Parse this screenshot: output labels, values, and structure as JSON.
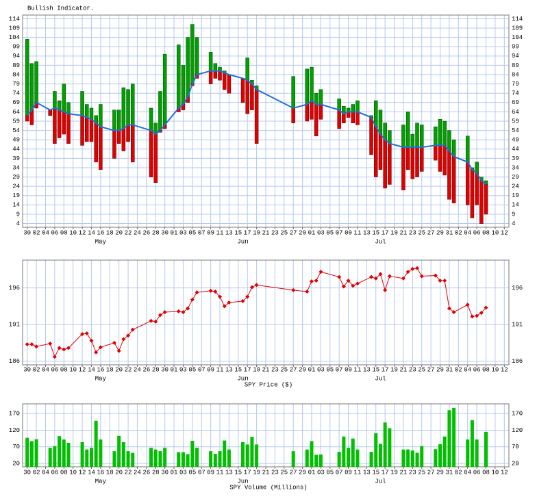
{
  "chart_data": [
    {
      "type": "range_bar",
      "title": "Bullish Indicator.",
      "x": [
        0,
        1,
        2,
        5,
        6,
        7,
        8,
        9,
        12,
        13,
        14,
        15,
        16,
        19,
        20,
        21,
        22,
        23,
        27,
        28,
        29,
        30,
        33,
        34,
        35,
        36,
        37,
        40,
        41,
        42,
        43,
        44,
        47,
        48,
        49,
        50,
        58,
        61,
        62,
        63,
        64,
        68,
        69,
        70,
        71,
        72,
        75,
        76,
        77,
        78,
        79,
        82,
        83,
        84,
        85,
        86,
        89,
        90,
        91,
        92,
        93,
        96,
        97,
        98,
        99,
        100
      ],
      "high": [
        103,
        90,
        91,
        65,
        75,
        70,
        79,
        69,
        75,
        68,
        66,
        62,
        68,
        65,
        65,
        77,
        76,
        79,
        66,
        58,
        75,
        95,
        100,
        89,
        104,
        111,
        104,
        96,
        90,
        88,
        86,
        84,
        82,
        93,
        81,
        78,
        83,
        87,
        88,
        74,
        76,
        71,
        67,
        66,
        68,
        70,
        62,
        70,
        65,
        58,
        54,
        57,
        64,
        52,
        58,
        57,
        56,
        60,
        59,
        54,
        49,
        51,
        34,
        37,
        29,
        27
      ],
      "low": [
        59,
        57,
        66,
        62,
        47,
        50,
        52,
        47,
        46,
        48,
        48,
        37,
        33,
        39,
        47,
        43,
        48,
        37,
        29,
        26,
        53,
        55,
        64,
        65,
        69,
        78,
        82,
        79,
        82,
        81,
        76,
        74,
        69,
        63,
        65,
        47,
        58,
        59,
        60,
        51,
        60,
        55,
        58,
        61,
        58,
        57,
        41,
        29,
        33,
        23,
        25,
        22,
        33,
        28,
        29,
        32,
        38,
        32,
        30,
        17,
        15,
        14,
        7,
        14,
        4,
        9
      ],
      "average": [
        62,
        65,
        69,
        65,
        66,
        65,
        64,
        63,
        62,
        61,
        60,
        58,
        56,
        54,
        54,
        55,
        57,
        57,
        54,
        52,
        54,
        57,
        66,
        68,
        72,
        79,
        84,
        86,
        86,
        86,
        85,
        84,
        82,
        81,
        79,
        76,
        66,
        68,
        70,
        68,
        68,
        65,
        63,
        64,
        64,
        64,
        61,
        56,
        52,
        49,
        47,
        45,
        45,
        45,
        45,
        45,
        46,
        46,
        46,
        43,
        40,
        37,
        33,
        31,
        27,
        25
      ],
      "up_color": "#00a000",
      "down_color": "#e00000",
      "line_color": "#1f6fd6",
      "xlim": [
        -1,
        105
      ],
      "xticks": [
        {
          "value": 0,
          "label": "30"
        },
        {
          "value": 2,
          "label": "02"
        },
        {
          "value": 4,
          "label": "04"
        },
        {
          "value": 6,
          "label": "06"
        },
        {
          "value": 8,
          "label": "08"
        },
        10,
        12,
        14,
        16,
        18,
        20,
        22,
        24,
        26,
        28,
        30,
        {
          "value": 32,
          "label": "01"
        },
        {
          "value": 34,
          "label": "03"
        },
        {
          "value": 36,
          "label": "05"
        },
        {
          "value": 38,
          "label": "07"
        },
        {
          "value": 40,
          "label": "09"
        },
        {
          "value": 42,
          "label": "11"
        },
        {
          "value": 44,
          "label": "13"
        },
        {
          "value": 46,
          "label": "15"
        },
        {
          "value": 48,
          "label": "17"
        },
        {
          "value": 50,
          "label": "19"
        },
        {
          "value": 52,
          "label": "21"
        },
        {
          "value": 54,
          "label": "23"
        },
        {
          "value": 56,
          "label": "25"
        },
        {
          "value": 58,
          "label": "27"
        },
        {
          "value": 60,
          "label": "29"
        },
        {
          "value": 62,
          "label": "01"
        },
        {
          "value": 64,
          "label": "03"
        },
        {
          "value": 66,
          "label": "05"
        },
        {
          "value": 68,
          "label": "07"
        },
        {
          "value": 70,
          "label": "09"
        },
        {
          "value": 72,
          "label": "11"
        },
        {
          "value": 74,
          "label": "13"
        },
        {
          "value": 76,
          "label": "15"
        },
        {
          "value": 78,
          "label": "17"
        },
        {
          "value": 80,
          "label": "19"
        },
        {
          "value": 82,
          "label": "21"
        },
        {
          "value": 84,
          "label": "23"
        },
        {
          "value": 86,
          "label": "25"
        },
        {
          "value": 88,
          "label": "27"
        },
        {
          "value": 90,
          "label": "29"
        },
        {
          "value": 92,
          "label": "31"
        },
        {
          "value": 94,
          "label": "02"
        },
        {
          "value": 96,
          "label": "04"
        },
        {
          "value": 98,
          "label": "06"
        },
        {
          "value": 100,
          "label": "08"
        },
        {
          "value": 102,
          "label": "10"
        },
        {
          "value": 104,
          "label": "12"
        }
      ],
      "month_labels": [
        {
          "value": 16,
          "label": "May"
        },
        {
          "value": 47,
          "label": "Jun"
        },
        {
          "value": 77,
          "label": "Jul"
        }
      ],
      "ylim": [
        2,
        116
      ],
      "yticks": [
        4,
        9,
        14,
        19,
        24,
        29,
        34,
        39,
        44,
        49,
        54,
        59,
        64,
        69,
        74,
        79,
        84,
        89,
        94,
        99,
        104,
        109,
        114
      ],
      "grid": true
    },
    {
      "type": "line",
      "title": "SPY Price ($)",
      "x": [
        0,
        1,
        2,
        5,
        6,
        7,
        8,
        9,
        12,
        13,
        14,
        15,
        16,
        19,
        20,
        21,
        22,
        23,
        27,
        28,
        29,
        30,
        33,
        34,
        35,
        36,
        37,
        40,
        41,
        42,
        43,
        44,
        47,
        48,
        49,
        50,
        58,
        61,
        62,
        63,
        64,
        68,
        69,
        70,
        71,
        72,
        75,
        76,
        77,
        78,
        79,
        82,
        83,
        84,
        85,
        86,
        89,
        90,
        91,
        92,
        93,
        96,
        97,
        98,
        99,
        100
      ],
      "values": [
        188.3,
        188.3,
        188.0,
        188.4,
        186.6,
        187.8,
        187.6,
        187.8,
        189.7,
        189.8,
        188.8,
        187.2,
        187.9,
        188.5,
        187.4,
        189.0,
        189.5,
        190.3,
        191.5,
        191.4,
        192.3,
        192.7,
        192.8,
        192.7,
        193.2,
        194.4,
        195.4,
        195.6,
        195.5,
        194.8,
        193.5,
        194.0,
        194.2,
        194.8,
        196.1,
        196.4,
        195.7,
        195.5,
        196.9,
        197.0,
        198.2,
        197.5,
        196.2,
        197.0,
        196.3,
        196.6,
        197.5,
        197.3,
        197.9,
        195.7,
        197.6,
        197.3,
        198.2,
        198.6,
        198.7,
        197.6,
        197.7,
        197.0,
        197.0,
        193.2,
        192.7,
        193.7,
        192.1,
        192.2,
        192.6,
        193.3
      ],
      "color": "#e00000",
      "xlim": [
        -1,
        105
      ],
      "xticks": [
        {
          "value": 0,
          "label": "30"
        },
        {
          "value": 2,
          "label": "02"
        },
        {
          "value": 4,
          "label": "04"
        },
        {
          "value": 6,
          "label": "06"
        },
        {
          "value": 8,
          "label": "08"
        },
        10,
        12,
        14,
        16,
        18,
        20,
        22,
        24,
        26,
        28,
        30,
        {
          "value": 32,
          "label": "01"
        },
        {
          "value": 34,
          "label": "03"
        },
        {
          "value": 36,
          "label": "05"
        },
        {
          "value": 38,
          "label": "07"
        },
        {
          "value": 40,
          "label": "09"
        },
        {
          "value": 42,
          "label": "11"
        },
        {
          "value": 44,
          "label": "13"
        },
        {
          "value": 46,
          "label": "15"
        },
        {
          "value": 48,
          "label": "17"
        },
        {
          "value": 50,
          "label": "19"
        },
        {
          "value": 52,
          "label": "21"
        },
        {
          "value": 54,
          "label": "23"
        },
        {
          "value": 56,
          "label": "25"
        },
        {
          "value": 58,
          "label": "27"
        },
        {
          "value": 60,
          "label": "29"
        },
        {
          "value": 62,
          "label": "01"
        },
        {
          "value": 64,
          "label": "03"
        },
        {
          "value": 66,
          "label": "05"
        },
        {
          "value": 68,
          "label": "07"
        },
        {
          "value": 70,
          "label": "09"
        },
        {
          "value": 72,
          "label": "11"
        },
        {
          "value": 74,
          "label": "13"
        },
        {
          "value": 76,
          "label": "15"
        },
        {
          "value": 78,
          "label": "17"
        },
        {
          "value": 80,
          "label": "19"
        },
        {
          "value": 82,
          "label": "21"
        },
        {
          "value": 84,
          "label": "23"
        },
        {
          "value": 86,
          "label": "25"
        },
        {
          "value": 88,
          "label": "27"
        },
        {
          "value": 90,
          "label": "29"
        },
        {
          "value": 92,
          "label": "31"
        },
        {
          "value": 94,
          "label": "02"
        },
        {
          "value": 96,
          "label": "04"
        },
        {
          "value": 98,
          "label": "06"
        },
        {
          "value": 100,
          "label": "08"
        },
        {
          "value": 102,
          "label": "10"
        },
        {
          "value": 104,
          "label": "12"
        }
      ],
      "month_labels": [
        {
          "value": 16,
          "label": "May"
        },
        {
          "value": 47,
          "label": "Jun"
        },
        {
          "value": 77,
          "label": "Jul"
        }
      ],
      "ylim": [
        185.5,
        199.8
      ],
      "yticks": [
        186,
        191,
        196
      ],
      "grid": true
    },
    {
      "type": "bar",
      "title": "SPY Volume (Millions)",
      "x": [
        0,
        1,
        2,
        5,
        6,
        7,
        8,
        9,
        12,
        13,
        14,
        15,
        16,
        19,
        20,
        21,
        22,
        23,
        27,
        28,
        29,
        30,
        33,
        34,
        35,
        36,
        37,
        40,
        41,
        42,
        43,
        44,
        47,
        48,
        49,
        50,
        58,
        61,
        62,
        63,
        64,
        68,
        69,
        70,
        71,
        72,
        75,
        76,
        77,
        78,
        79,
        82,
        83,
        84,
        85,
        86,
        89,
        90,
        91,
        92,
        93,
        96,
        97,
        98,
        99,
        100
      ],
      "values": [
        97,
        87,
        93,
        67,
        72,
        102,
        92,
        82,
        84,
        62,
        67,
        148,
        92,
        57,
        103,
        84,
        57,
        52,
        67,
        62,
        57,
        67,
        54,
        54,
        48,
        88,
        67,
        57,
        49,
        57,
        89,
        62,
        84,
        77,
        100,
        77,
        57,
        62,
        87,
        46,
        47,
        55,
        101,
        67,
        95,
        62,
        55,
        111,
        79,
        143,
        126,
        62,
        62,
        59,
        52,
        72,
        63,
        78,
        101,
        180,
        187,
        92,
        150,
        92,
        null,
        115
      ],
      "color": "#00c000",
      "xlim": [
        -1,
        105
      ],
      "xticks": [
        {
          "value": 0,
          "label": "30"
        },
        {
          "value": 2,
          "label": "02"
        },
        {
          "value": 4,
          "label": "04"
        },
        {
          "value": 6,
          "label": "06"
        },
        {
          "value": 8,
          "label": "08"
        },
        10,
        12,
        14,
        16,
        18,
        20,
        22,
        24,
        26,
        28,
        30,
        {
          "value": 32,
          "label": "01"
        },
        {
          "value": 34,
          "label": "03"
        },
        {
          "value": 36,
          "label": "05"
        },
        {
          "value": 38,
          "label": "07"
        },
        {
          "value": 40,
          "label": "09"
        },
        {
          "value": 42,
          "label": "11"
        },
        {
          "value": 44,
          "label": "13"
        },
        {
          "value": 46,
          "label": "15"
        },
        {
          "value": 48,
          "label": "17"
        },
        {
          "value": 50,
          "label": "19"
        },
        {
          "value": 52,
          "label": "21"
        },
        {
          "value": 54,
          "label": "23"
        },
        {
          "value": 56,
          "label": "25"
        },
        {
          "value": 58,
          "label": "27"
        },
        {
          "value": 60,
          "label": "29"
        },
        {
          "value": 62,
          "label": "01"
        },
        {
          "value": 64,
          "label": "03"
        },
        {
          "value": 66,
          "label": "05"
        },
        {
          "value": 68,
          "label": "07"
        },
        {
          "value": 70,
          "label": "09"
        },
        {
          "value": 72,
          "label": "11"
        },
        {
          "value": 74,
          "label": "13"
        },
        {
          "value": 76,
          "label": "15"
        },
        {
          "value": 78,
          "label": "17"
        },
        {
          "value": 80,
          "label": "19"
        },
        {
          "value": 82,
          "label": "21"
        },
        {
          "value": 84,
          "label": "23"
        },
        {
          "value": 86,
          "label": "25"
        },
        {
          "value": 88,
          "label": "27"
        },
        {
          "value": 90,
          "label": "29"
        },
        {
          "value": 92,
          "label": "31"
        },
        {
          "value": 94,
          "label": "02"
        },
        {
          "value": 96,
          "label": "04"
        },
        {
          "value": 98,
          "label": "06"
        },
        {
          "value": 100,
          "label": "08"
        },
        {
          "value": 102,
          "label": "10"
        },
        {
          "value": 104,
          "label": "12"
        }
      ],
      "month_labels": [
        {
          "value": 16,
          "label": "May"
        },
        {
          "value": 47,
          "label": "Jun"
        },
        {
          "value": 77,
          "label": "Jul"
        }
      ],
      "ylim": [
        10,
        199
      ],
      "yticks": [
        20,
        70,
        120,
        170
      ],
      "grid": true
    }
  ]
}
